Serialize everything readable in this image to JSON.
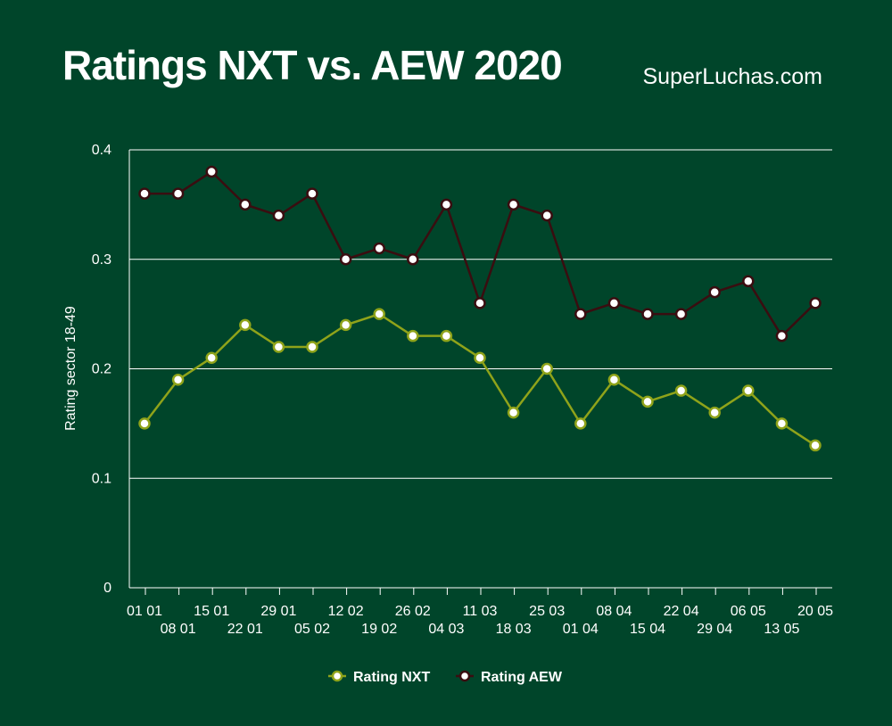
{
  "header": {
    "title": "Ratings NXT vs. AEW 2020",
    "brand": "SuperLuchas.com"
  },
  "chart_data": {
    "type": "line",
    "title": "Ratings NXT vs. AEW 2020",
    "xlabel": "",
    "ylabel": "Rating sector 18-49",
    "ylim": [
      0,
      0.4
    ],
    "yticks": [
      "0",
      "0.1",
      "0.2",
      "0.3",
      "0.4"
    ],
    "categories": [
      "01 01",
      "08 01",
      "15 01",
      "22 01",
      "29 01",
      "05 02",
      "12 02",
      "19 02",
      "26 02",
      "04 03",
      "11 03",
      "18 03",
      "25 03",
      "01 04",
      "08 04",
      "15 04",
      "22 04",
      "29 04",
      "06 05",
      "13 05",
      "20 05"
    ],
    "grid": true,
    "legend_position": "bottom",
    "series": [
      {
        "name": "Rating NXT",
        "color": "#8fa31a",
        "values": [
          0.15,
          0.19,
          0.21,
          0.24,
          0.22,
          0.22,
          0.24,
          0.25,
          0.23,
          0.23,
          0.21,
          0.16,
          0.2,
          0.15,
          0.19,
          0.17,
          0.18,
          0.16,
          0.18,
          0.15,
          0.13
        ]
      },
      {
        "name": "Rating AEW",
        "color": "#3a0d10",
        "values": [
          0.36,
          0.36,
          0.38,
          0.35,
          0.34,
          0.36,
          0.3,
          0.31,
          0.3,
          0.35,
          0.26,
          0.35,
          0.34,
          0.25,
          0.26,
          0.25,
          0.25,
          0.27,
          0.28,
          0.23,
          0.26
        ]
      }
    ]
  }
}
